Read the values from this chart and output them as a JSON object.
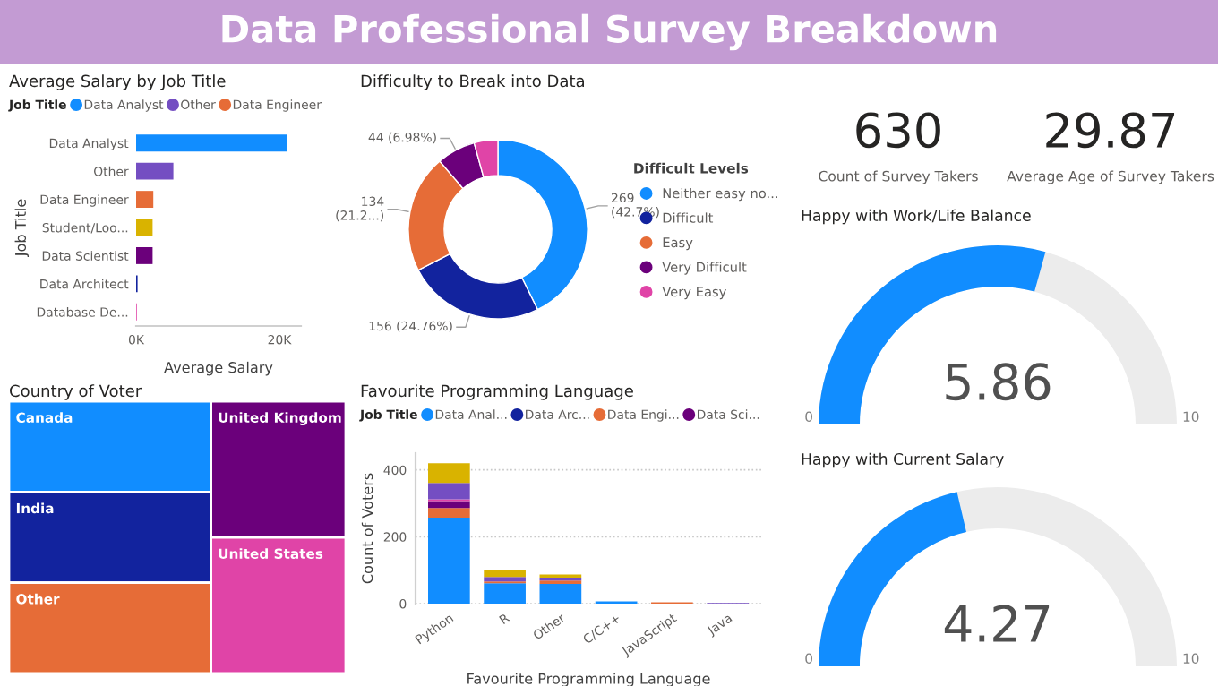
{
  "chart_data": [
    {
      "type": "other",
      "title": "Data Professional Survey Breakdown"
    },
    {
      "type": "bar",
      "title": "Average Salary by Job Title",
      "orientation": "horizontal",
      "categories": [
        "Data Analyst",
        "Other",
        "Data Engineer",
        "Student/Loo...",
        "Data Scientist",
        "Data Architect",
        "Database De..."
      ],
      "series": [
        {
          "name": "Data Analyst",
          "color": "#118dff",
          "values": [
            21100,
            null,
            null,
            null,
            null,
            null,
            null
          ]
        },
        {
          "name": "Other",
          "color": "#744ec2",
          "values": [
            null,
            5200,
            null,
            null,
            null,
            null,
            null
          ]
        },
        {
          "name": "Data Engineer",
          "color": "#e66c37",
          "values": [
            null,
            null,
            2400,
            null,
            null,
            null,
            null
          ]
        },
        {
          "color": "#d9b300",
          "values": [
            null,
            null,
            null,
            2300,
            null,
            null,
            null
          ]
        },
        {
          "color": "#6b007b",
          "values": [
            null,
            null,
            null,
            null,
            2300,
            null,
            null
          ]
        },
        {
          "color": "#12239e",
          "values": [
            null,
            null,
            null,
            null,
            null,
            200,
            null
          ]
        },
        {
          "color": "#e044a7",
          "values": [
            null,
            null,
            null,
            null,
            null,
            null,
            100
          ]
        }
      ],
      "xlabel": "Average Salary",
      "ylabel": "Job Title",
      "xlim": [
        0,
        23000
      ],
      "xticks": [
        {
          "value": 0,
          "label": "0K"
        },
        {
          "value": 20000,
          "label": "20K"
        }
      ],
      "legend": "top left",
      "legend_title": "Job Title",
      "grid": false
    },
    {
      "type": "donut",
      "title": "Difficulty to Break into Data",
      "categories": [
        "Neither easy no...",
        "Difficult",
        "Easy",
        "Very Difficult",
        "Very Easy"
      ],
      "values": [
        269,
        156,
        134,
        44,
        27
      ],
      "colors": [
        "#118dff",
        "#12239e",
        "#e66c37",
        "#6b007b",
        "#e044a7"
      ],
      "value_labels": [
        "269\n(42.7%)",
        "156 (24.76%)",
        "134\n(21.2...)",
        "44 (6.98%)",
        null
      ],
      "legend": "right",
      "legend_title": "Difficult Levels"
    },
    {
      "type": "other",
      "title": "Country of Voter",
      "categories": [
        "Canada",
        "India",
        "Other",
        "United Kingdom",
        "United States"
      ],
      "colors": [
        "#118dff",
        "#12239e",
        "#e66c37",
        "#6b007b",
        "#e044a7"
      ]
    },
    {
      "type": "bar",
      "title": "Favourite Programming Language",
      "stacked": true,
      "categories": [
        "Python",
        "R",
        "Other",
        "C/C++",
        "JavaScript",
        "Java"
      ],
      "xlabel": "Favourite Programming Language",
      "ylabel": "Count of Voters",
      "ylim": [
        0,
        450
      ],
      "yticks": [
        0,
        200,
        400
      ],
      "grid": "y",
      "legend": "top left",
      "legend_title": "Job Title",
      "series": [
        {
          "name": "Data Anal...",
          "color": "#118dff",
          "values": [
            257,
            61,
            59,
            7,
            null,
            null
          ]
        },
        {
          "name": "Data Arc...",
          "color": "#12239e",
          "values": [
            null,
            null,
            null,
            null,
            null,
            null
          ]
        },
        {
          "name": "Data Engi...",
          "color": "#e66c37",
          "values": [
            29,
            5,
            10,
            null,
            4,
            null
          ]
        },
        {
          "name": "Data Sci...",
          "color": "#6b007b",
          "values": [
            21,
            null,
            null,
            null,
            null,
            null
          ]
        },
        {
          "color": "#e044a7",
          "values": [
            5,
            null,
            null,
            null,
            null,
            null
          ]
        },
        {
          "color": "#744ec2",
          "values": [
            49,
            14,
            9,
            null,
            null,
            2
          ]
        },
        {
          "color": "#d9b300",
          "values": [
            59,
            20,
            9,
            null,
            null,
            null
          ]
        }
      ]
    },
    {
      "type": "other",
      "values": [
        630
      ],
      "subtitle": "Count of Survey Takers",
      "data_labels": true
    },
    {
      "type": "other",
      "values": [
        29.87
      ],
      "subtitle": "Average Age of Survey Takers",
      "data_labels": true
    },
    {
      "type": "other",
      "title": "Happy with Work/Life Balance",
      "values": [
        5.86
      ],
      "annotations": [
        "0",
        "10"
      ],
      "color": "#118dff",
      "data_labels": true
    },
    {
      "type": "other",
      "title": "Happy with Current Salary",
      "values": [
        4.27
      ],
      "annotations": [
        "0",
        "10"
      ],
      "color": "#118dff",
      "data_labels": true
    }
  ]
}
